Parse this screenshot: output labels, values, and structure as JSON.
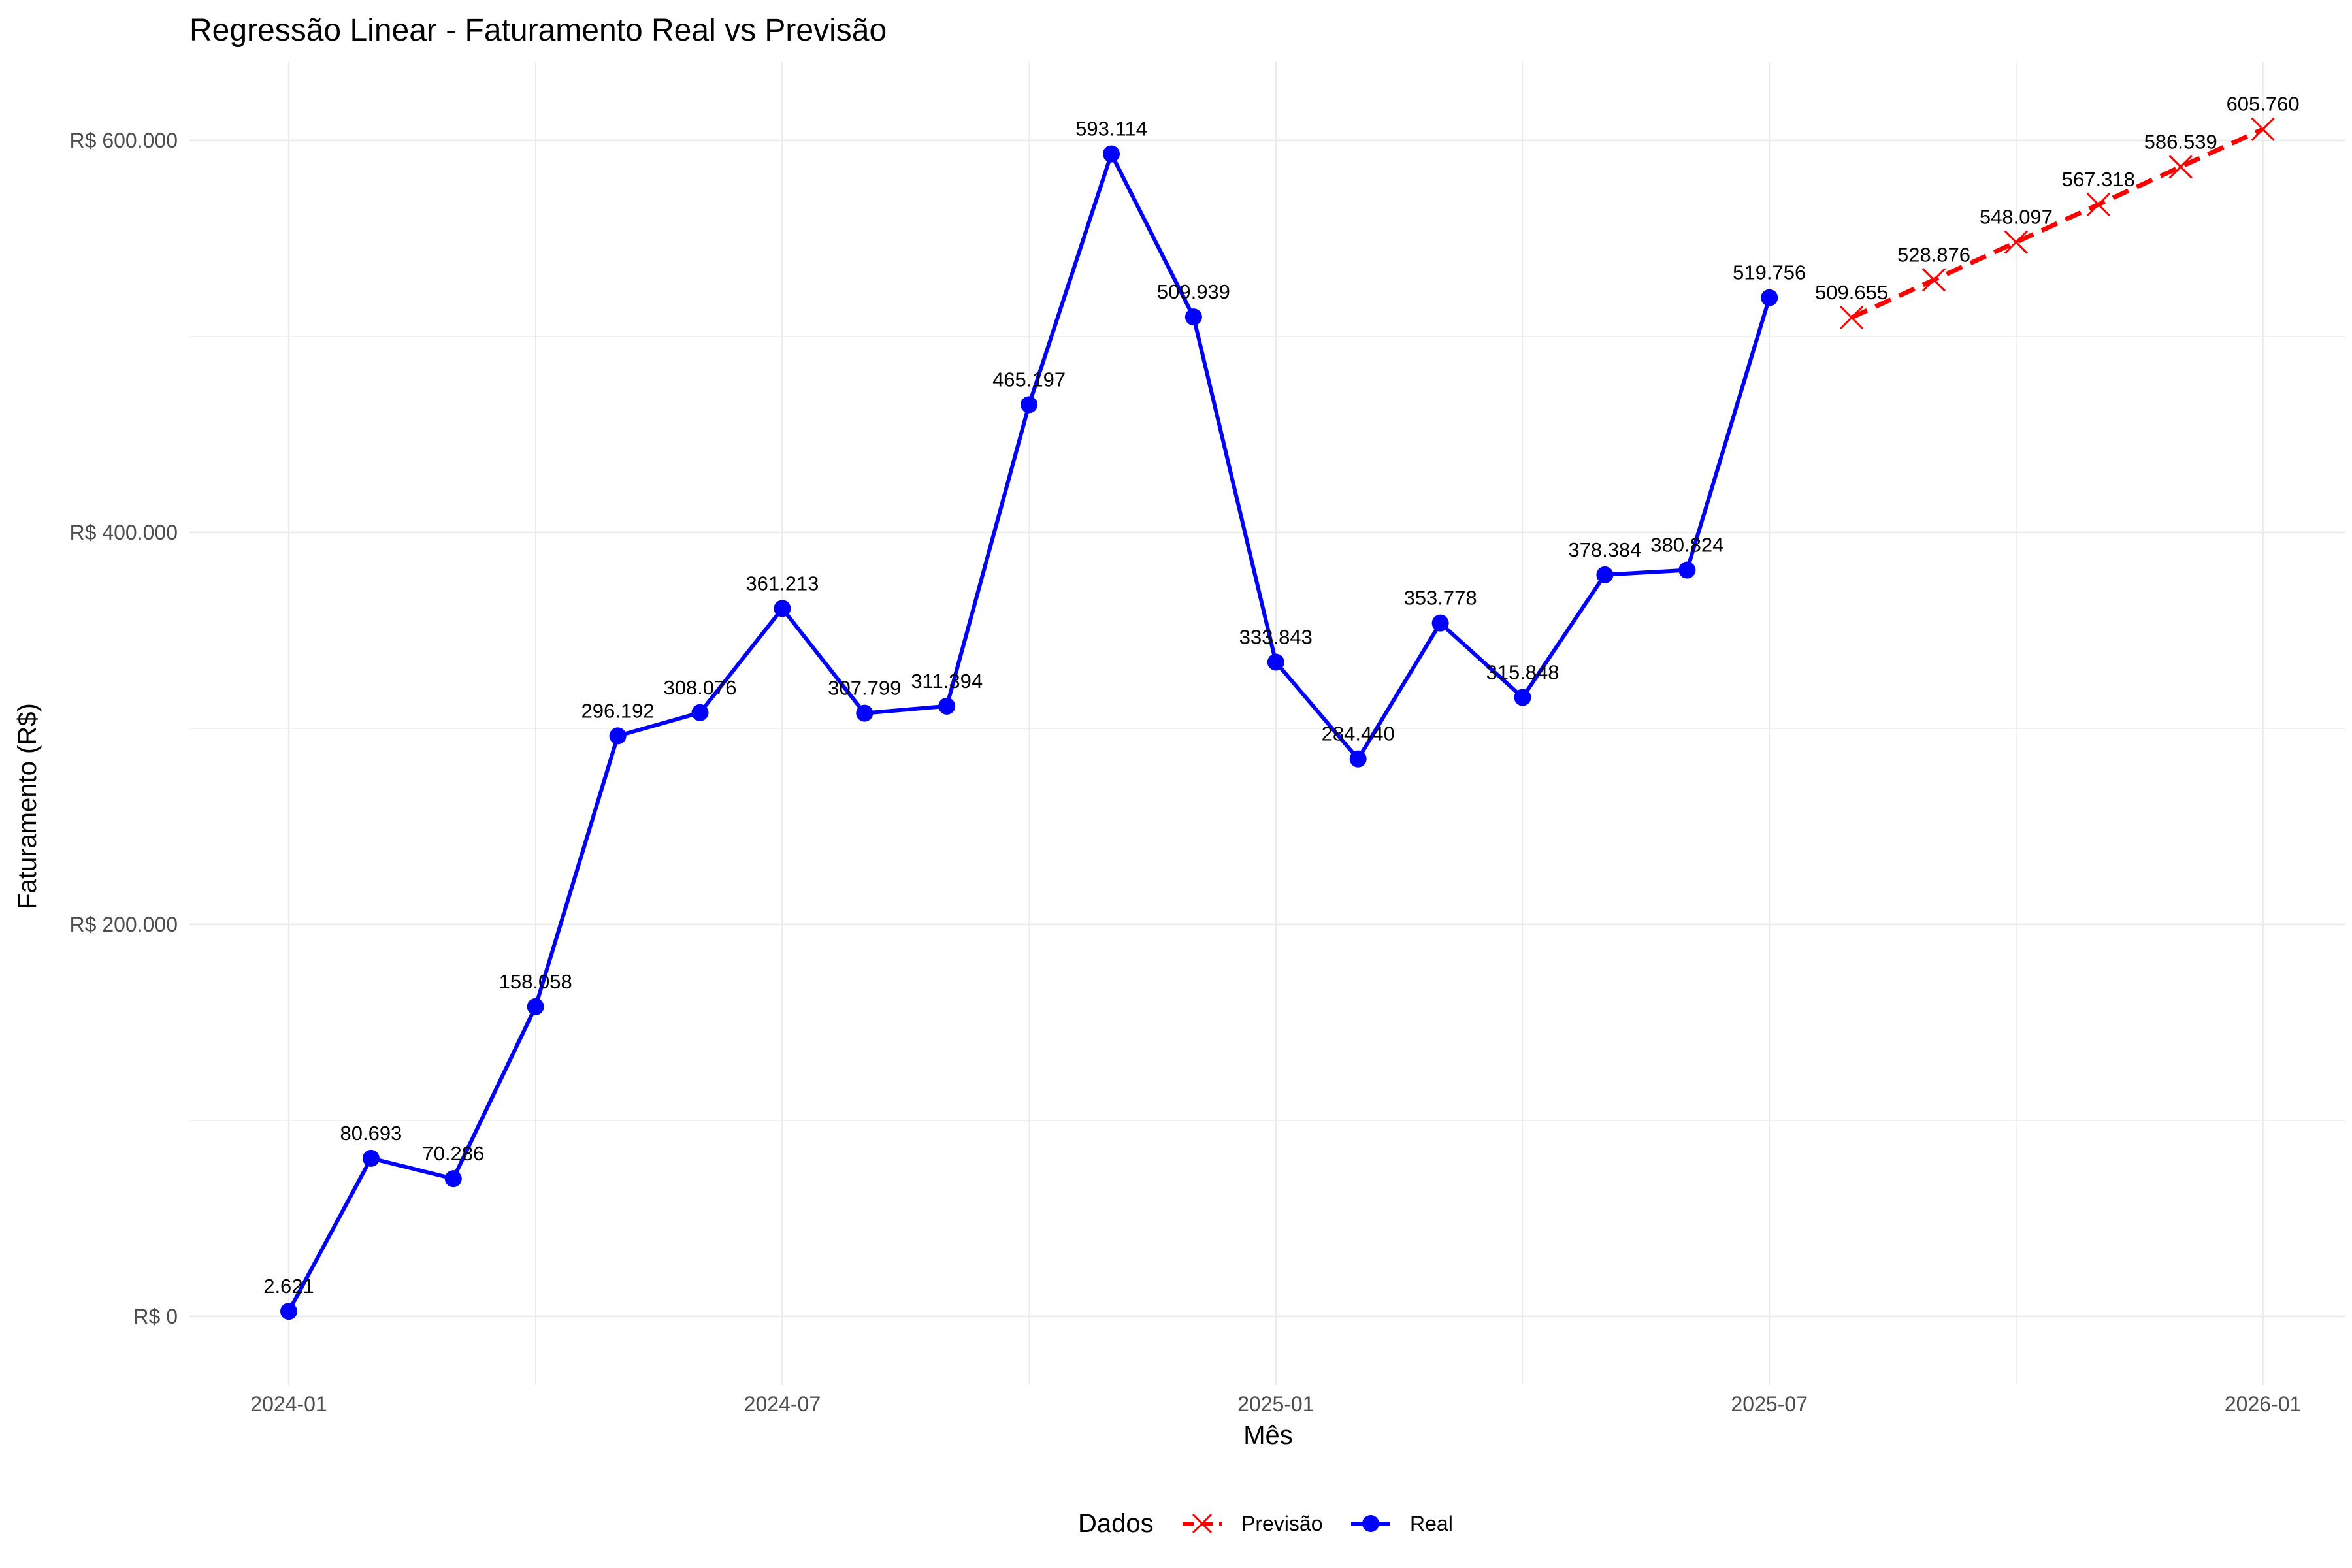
{
  "chart_data": {
    "type": "line",
    "title": "Regressão Linear - Faturamento Real vs Previsão",
    "xlabel": "Mês",
    "ylabel": "Faturamento (R$)",
    "x_tick_labels": [
      "2024-01",
      "2024-07",
      "2025-01",
      "2025-07",
      "2026-01"
    ],
    "y_tick_labels": [
      "R$ 0",
      "R$ 200.000",
      "R$ 400.000",
      "R$ 600.000"
    ],
    "ylim": [
      -35000,
      640000
    ],
    "grid": true,
    "legend": {
      "title": "Dados",
      "position": "bottom",
      "entries": [
        "Previsão",
        "Real"
      ]
    },
    "series": [
      {
        "name": "Real",
        "color": "#0000ff",
        "line_style": "solid",
        "marker": "circle",
        "x": [
          "2024-01",
          "2024-02",
          "2024-03",
          "2024-04",
          "2024-05",
          "2024-06",
          "2024-07",
          "2024-08",
          "2024-09",
          "2024-10",
          "2024-11",
          "2024-12",
          "2025-01",
          "2025-02",
          "2025-03",
          "2025-04",
          "2025-05",
          "2025-06",
          "2025-07"
        ],
        "values": [
          2621,
          80693,
          70286,
          158058,
          296192,
          308076,
          361213,
          307799,
          311394,
          465197,
          593114,
          509939,
          333843,
          284440,
          353778,
          315848,
          378384,
          380824,
          519756
        ],
        "labels": [
          "2.621",
          "80.693",
          "70.286",
          "158.058",
          "296.192",
          "308.076",
          "361.213",
          "307.799",
          "311.394",
          "465.197",
          "593.114",
          "509.939",
          "333.843",
          "284.440",
          "353.778",
          "315.848",
          "378.384",
          "380.824",
          "519.756"
        ]
      },
      {
        "name": "Previsão",
        "color": "#ff0000",
        "line_style": "dashed",
        "marker": "cross",
        "x": [
          "2025-08",
          "2025-09",
          "2025-10",
          "2025-11",
          "2025-12",
          "2026-01"
        ],
        "values": [
          509655,
          528876,
          548097,
          567318,
          586539,
          605760
        ],
        "labels": [
          "509.655",
          "528.876",
          "548.097",
          "567.318",
          "586.539",
          "605.760"
        ]
      }
    ]
  }
}
